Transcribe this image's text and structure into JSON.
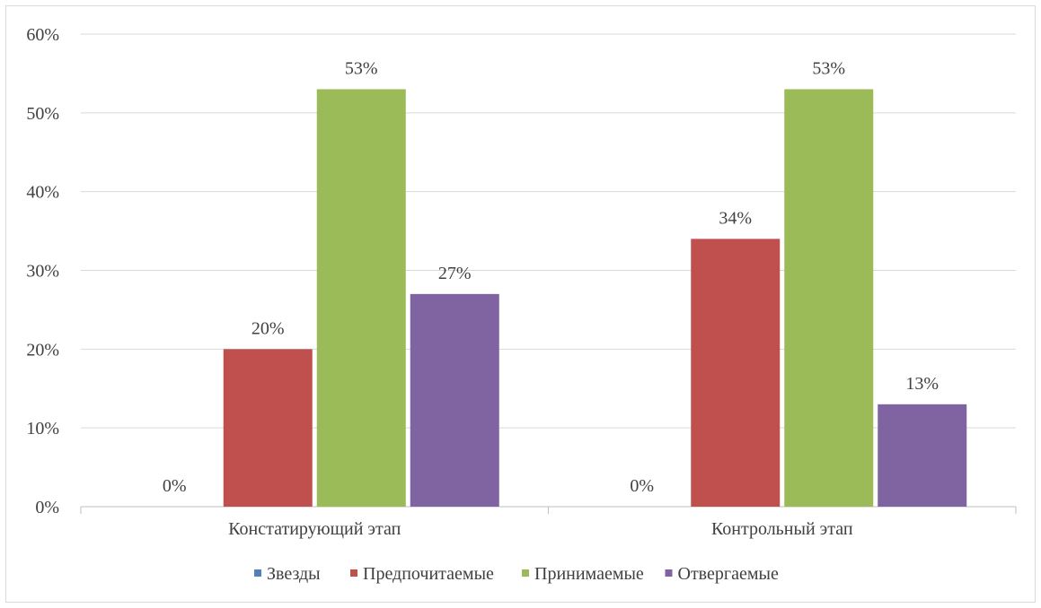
{
  "chart_data": {
    "type": "bar",
    "title": "",
    "xlabel": "",
    "ylabel": "",
    "ylim": [
      0,
      60
    ],
    "y_ticks": [
      0,
      10,
      20,
      30,
      40,
      50,
      60
    ],
    "y_tick_labels": [
      "0%",
      "10%",
      "20%",
      "30%",
      "40%",
      "50%",
      "60%"
    ],
    "grid": true,
    "legend_position": "bottom",
    "categories": [
      "Констатирующий этап",
      "Контрольный этап"
    ],
    "series": [
      {
        "name": "Звезды",
        "color": "#4f81bd",
        "values": [
          0,
          0
        ],
        "labels": [
          "0%",
          "0%"
        ]
      },
      {
        "name": "Предпочитаемые",
        "color": "#c0504d",
        "values": [
          20,
          34
        ],
        "labels": [
          "20%",
          "34%"
        ]
      },
      {
        "name": "Принимаемые",
        "color": "#9bbb59",
        "values": [
          53,
          53
        ],
        "labels": [
          "53%",
          "53%"
        ]
      },
      {
        "name": "Отвергаемые",
        "color": "#8064a2",
        "values": [
          27,
          13
        ],
        "labels": [
          "27%",
          "13%"
        ]
      }
    ]
  }
}
